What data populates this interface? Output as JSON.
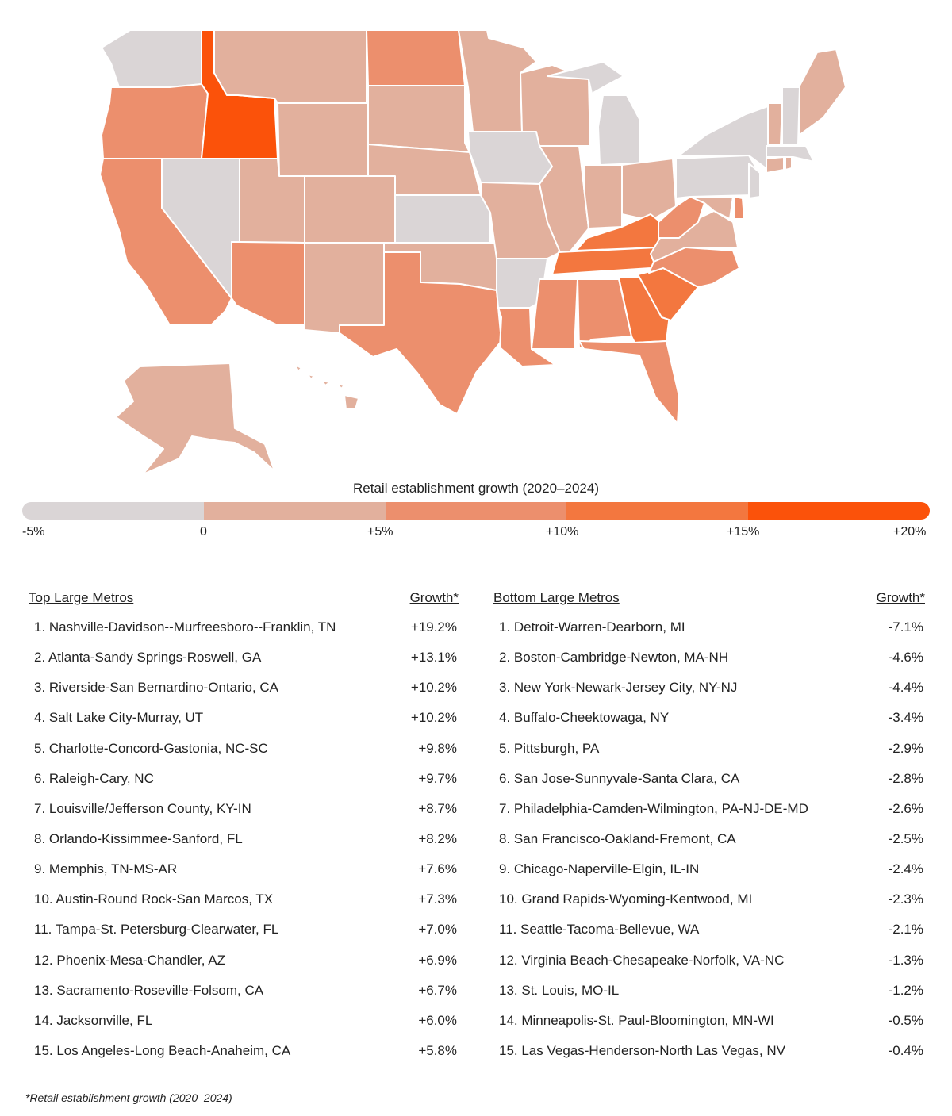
{
  "colors": {
    "bin_neg": "#dad5d6",
    "bin_0_5": "#e2b09d",
    "bin_5_10": "#ec8f6d",
    "bin_10_15": "#f3773f",
    "bin_15_20": "#fb520a",
    "border": "#ffffff"
  },
  "map": {
    "states": [
      {
        "id": "WA",
        "bin": "neg"
      },
      {
        "id": "OR",
        "bin": "5_10"
      },
      {
        "id": "CA",
        "bin": "5_10"
      },
      {
        "id": "ID",
        "bin": "15_20"
      },
      {
        "id": "NV",
        "bin": "neg"
      },
      {
        "id": "MT",
        "bin": "0_5"
      },
      {
        "id": "WY",
        "bin": "0_5"
      },
      {
        "id": "UT",
        "bin": "0_5"
      },
      {
        "id": "AZ",
        "bin": "5_10"
      },
      {
        "id": "CO",
        "bin": "0_5"
      },
      {
        "id": "NM",
        "bin": "0_5"
      },
      {
        "id": "ND",
        "bin": "5_10"
      },
      {
        "id": "SD",
        "bin": "0_5"
      },
      {
        "id": "NE",
        "bin": "0_5"
      },
      {
        "id": "KS",
        "bin": "neg"
      },
      {
        "id": "OK",
        "bin": "0_5"
      },
      {
        "id": "TX",
        "bin": "5_10"
      },
      {
        "id": "MN",
        "bin": "0_5"
      },
      {
        "id": "IA",
        "bin": "neg"
      },
      {
        "id": "MO",
        "bin": "0_5"
      },
      {
        "id": "AR",
        "bin": "neg"
      },
      {
        "id": "LA",
        "bin": "5_10"
      },
      {
        "id": "WI",
        "bin": "0_5"
      },
      {
        "id": "IL",
        "bin": "0_5"
      },
      {
        "id": "MI",
        "bin": "neg"
      },
      {
        "id": "IN",
        "bin": "0_5"
      },
      {
        "id": "OH",
        "bin": "0_5"
      },
      {
        "id": "KY",
        "bin": "10_15"
      },
      {
        "id": "TN",
        "bin": "10_15"
      },
      {
        "id": "MS",
        "bin": "5_10"
      },
      {
        "id": "AL",
        "bin": "5_10"
      },
      {
        "id": "GA",
        "bin": "10_15"
      },
      {
        "id": "FL",
        "bin": "5_10"
      },
      {
        "id": "SC",
        "bin": "10_15"
      },
      {
        "id": "NC",
        "bin": "5_10"
      },
      {
        "id": "VA",
        "bin": "0_5"
      },
      {
        "id": "WV",
        "bin": "5_10"
      },
      {
        "id": "PA",
        "bin": "neg"
      },
      {
        "id": "NY",
        "bin": "neg"
      },
      {
        "id": "MD",
        "bin": "0_5"
      },
      {
        "id": "DE",
        "bin": "5_10"
      },
      {
        "id": "NJ",
        "bin": "neg"
      },
      {
        "id": "CT",
        "bin": "0_5"
      },
      {
        "id": "RI",
        "bin": "0_5"
      },
      {
        "id": "MA",
        "bin": "neg"
      },
      {
        "id": "VT",
        "bin": "0_5"
      },
      {
        "id": "NH",
        "bin": "neg"
      },
      {
        "id": "ME",
        "bin": "0_5"
      },
      {
        "id": "AK",
        "bin": "0_5"
      },
      {
        "id": "HI",
        "bin": "0_5"
      }
    ]
  },
  "legend": {
    "title": "Retail establishment growth (2020–2024)",
    "ticks": [
      "-5%",
      "0",
      "+5%",
      "+10%",
      "+15%",
      "+20%"
    ]
  },
  "top": {
    "header": "Top Large Metros",
    "growth_header": "Growth*",
    "rows": [
      {
        "name": "1. Nashville-Davidson--Murfreesboro--Franklin, TN",
        "value": "+19.2%"
      },
      {
        "name": "2. Atlanta-Sandy Springs-Roswell, GA",
        "value": "+13.1%"
      },
      {
        "name": "3. Riverside-San Bernardino-Ontario, CA",
        "value": "+10.2%"
      },
      {
        "name": "4. Salt Lake City-Murray, UT",
        "value": "+10.2%"
      },
      {
        "name": "5. Charlotte-Concord-Gastonia, NC-SC",
        "value": "+9.8%"
      },
      {
        "name": "6. Raleigh-Cary, NC",
        "value": "+9.7%"
      },
      {
        "name": "7. Louisville/Jefferson County, KY-IN",
        "value": "+8.7%"
      },
      {
        "name": "8. Orlando-Kissimmee-Sanford, FL",
        "value": "+8.2%"
      },
      {
        "name": "9. Memphis, TN-MS-AR",
        "value": "+7.6%"
      },
      {
        "name": "10. Austin-Round Rock-San Marcos, TX",
        "value": "+7.3%"
      },
      {
        "name": "11. Tampa-St. Petersburg-Clearwater, FL",
        "value": "+7.0%"
      },
      {
        "name": "12. Phoenix-Mesa-Chandler, AZ",
        "value": "+6.9%"
      },
      {
        "name": "13. Sacramento-Roseville-Folsom, CA",
        "value": "+6.7%"
      },
      {
        "name": "14. Jacksonville, FL",
        "value": "+6.0%"
      },
      {
        "name": "15. Los Angeles-Long Beach-Anaheim, CA",
        "value": "+5.8%"
      }
    ]
  },
  "bottom": {
    "header": "Bottom Large Metros",
    "growth_header": "Growth*",
    "rows": [
      {
        "name": "1. Detroit-Warren-Dearborn, MI",
        "value": "-7.1%"
      },
      {
        "name": "2. Boston-Cambridge-Newton, MA-NH",
        "value": "-4.6%"
      },
      {
        "name": "3. New York-Newark-Jersey City, NY-NJ",
        "value": "-4.4%"
      },
      {
        "name": "4. Buffalo-Cheektowaga, NY",
        "value": "-3.4%"
      },
      {
        "name": "5. Pittsburgh, PA",
        "value": "-2.9%"
      },
      {
        "name": "6. San Jose-Sunnyvale-Santa Clara, CA",
        "value": "-2.8%"
      },
      {
        "name": "7. Philadelphia-Camden-Wilmington, PA-NJ-DE-MD",
        "value": "-2.6%"
      },
      {
        "name": "8. San Francisco-Oakland-Fremont, CA",
        "value": "-2.5%"
      },
      {
        "name": "9. Chicago-Naperville-Elgin, IL-IN",
        "value": "-2.4%"
      },
      {
        "name": "10. Grand Rapids-Wyoming-Kentwood, MI",
        "value": "-2.3%"
      },
      {
        "name": "11. Seattle-Tacoma-Bellevue, WA",
        "value": "-2.1%"
      },
      {
        "name": "12. Virginia Beach-Chesapeake-Norfolk, VA-NC",
        "value": "-1.3%"
      },
      {
        "name": "13. St. Louis, MO-IL",
        "value": "-1.2%"
      },
      {
        "name": "14. Minneapolis-St. Paul-Bloomington, MN-WI",
        "value": "-0.5%"
      },
      {
        "name": "15. Las Vegas-Henderson-North Las Vegas, NV",
        "value": "-0.4%"
      }
    ]
  },
  "footnote": "*Retail establishment growth (2020–2024)"
}
